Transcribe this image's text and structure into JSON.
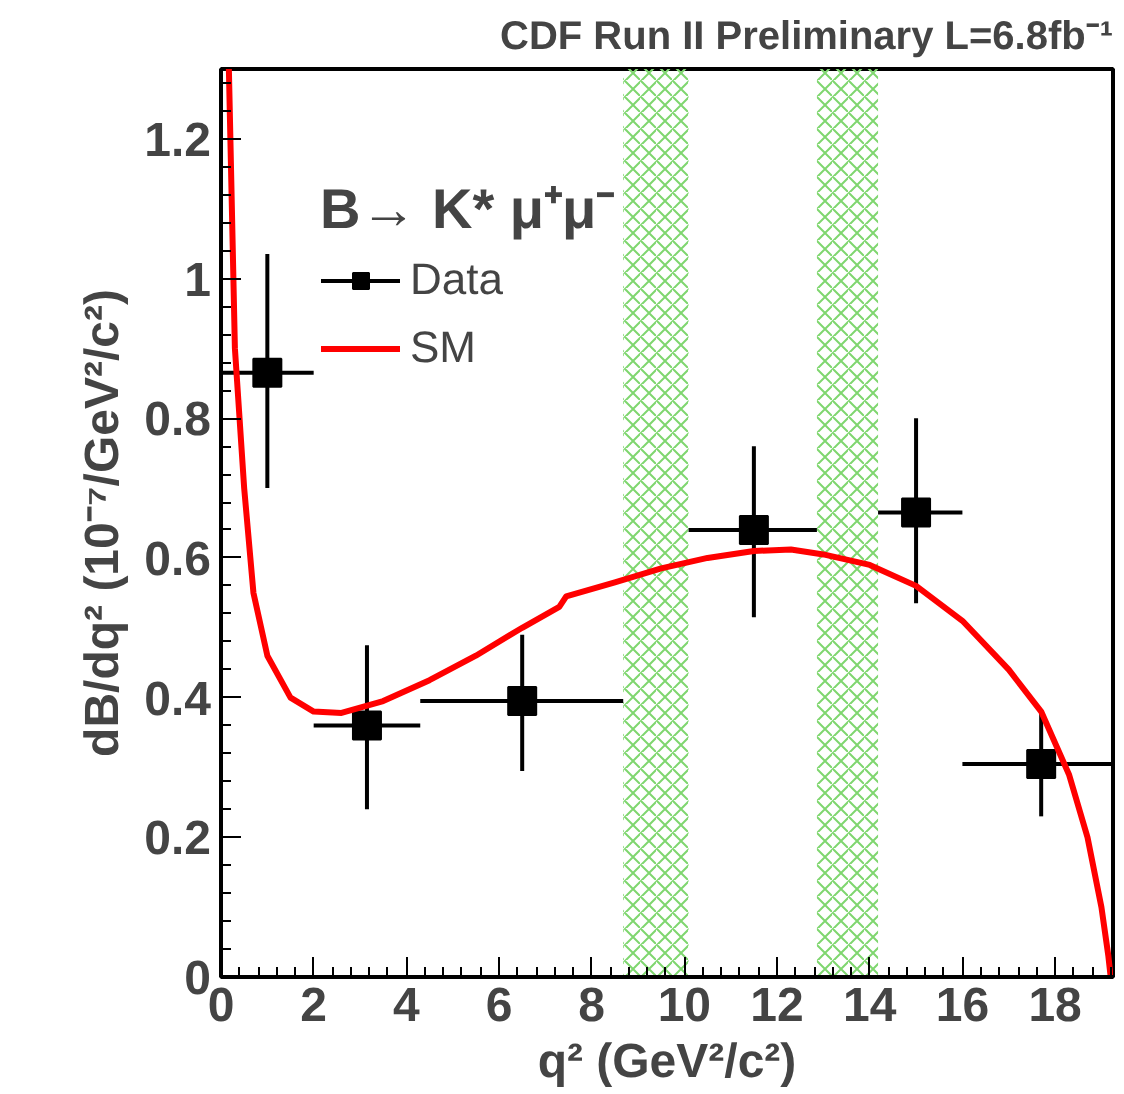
{
  "chart_data": {
    "type": "scatter",
    "title": "CDF Run II Preliminary L=6.8fb⁻¹",
    "xlabel": "q² (GeV²/c²)",
    "ylabel": "dB/dq² (10⁻⁷/GeV²/c²)",
    "legend_title": "B→ K* μ⁺μ⁻",
    "xlim": [
      0,
      19.25
    ],
    "ylim": [
      0,
      1.3
    ],
    "xticks": [
      0,
      2,
      4,
      6,
      8,
      10,
      12,
      14,
      16,
      18
    ],
    "yticks": [
      0,
      0.2,
      0.4,
      0.6,
      0.8,
      {
        "value": 1.0,
        "label": "1"
      },
      1.2
    ],
    "grid": false,
    "legend": "top left",
    "bands": [
      {
        "axis": "x",
        "from": 8.68,
        "to": 10.09,
        "color": "#7fd66f"
      },
      {
        "axis": "x",
        "from": 12.86,
        "to": 14.18,
        "color": "#7fd66f"
      }
    ],
    "series": [
      {
        "name": "Data",
        "marker": "square",
        "color": "#000000",
        "x": [
          1.0,
          3.15,
          6.5,
          11.5,
          15.0,
          17.7
        ],
        "values": [
          0.865,
          0.36,
          0.395,
          0.64,
          0.665,
          0.305
        ],
        "errors": [
          [
            0.7,
            1.035
          ],
          [
            0.24,
            0.475
          ],
          [
            0.295,
            0.49
          ],
          [
            0.515,
            0.76
          ],
          [
            0.535,
            0.8
          ],
          [
            0.23,
            0.38
          ]
        ],
        "xerrors": [
          [
            0,
            2.0
          ],
          [
            2.0,
            4.3
          ],
          [
            4.3,
            8.68
          ],
          [
            10.09,
            12.86
          ],
          [
            14.18,
            16.0
          ],
          [
            16.0,
            19.25
          ]
        ]
      },
      {
        "name": "SM",
        "type": "line",
        "line_style": "solid",
        "color": "#ff0000",
        "x": [
          0.17,
          0.3,
          0.5,
          0.7,
          1.0,
          1.5,
          2.0,
          2.6,
          3.5,
          4.5,
          5.5,
          6.5,
          7.3,
          7.45,
          8.5,
          9.5,
          10.5,
          11.5,
          12.3,
          13.0,
          14.0,
          15.0,
          16.0,
          17.0,
          17.7,
          18.3,
          18.7,
          19.0,
          19.15,
          19.2
        ],
        "values": [
          1.3,
          0.9,
          0.7,
          0.55,
          0.46,
          0.4,
          0.38,
          0.378,
          0.395,
          0.425,
          0.46,
          0.5,
          0.53,
          0.545,
          0.565,
          0.585,
          0.6,
          0.61,
          0.612,
          0.605,
          0.59,
          0.56,
          0.51,
          0.44,
          0.38,
          0.29,
          0.2,
          0.1,
          0.03,
          0
        ]
      }
    ]
  }
}
